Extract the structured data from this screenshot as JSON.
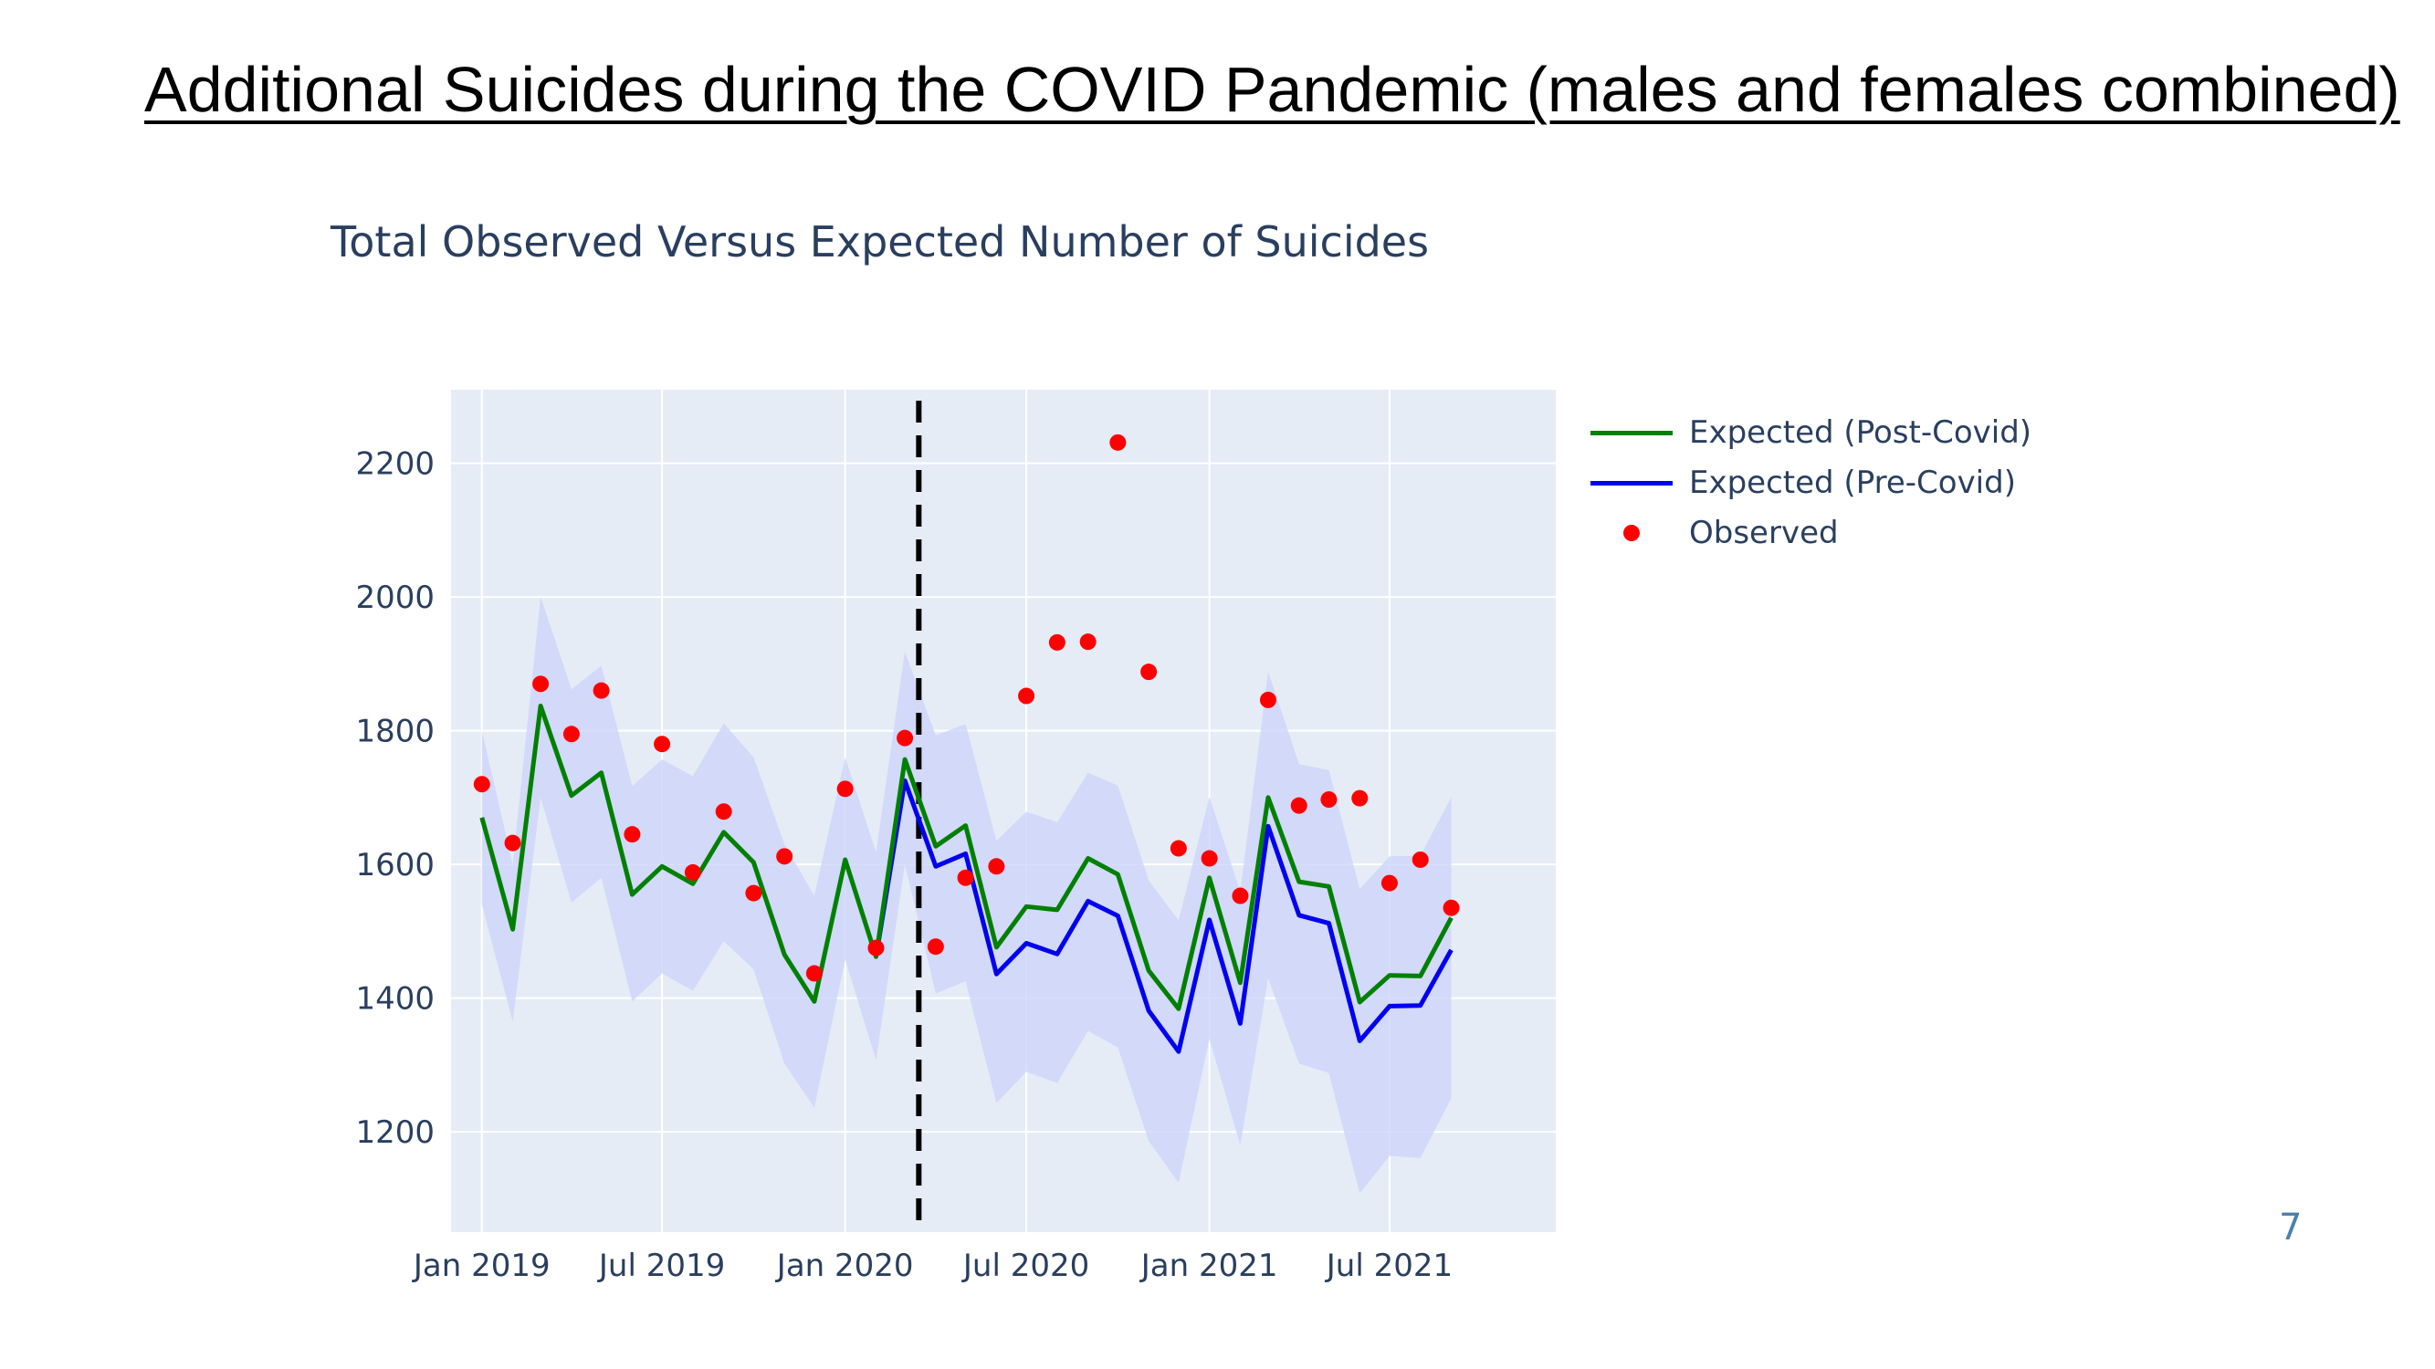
{
  "slide": {
    "title": "Additional Suicides during the COVID Pandemic (males and females combined)",
    "page_number": "7"
  },
  "colors": {
    "post_covid": "#008000",
    "pre_covid": "#0000ee",
    "observed": "#ff0000",
    "band": "#cdd5fa",
    "plot_bg": "#e5ecf6",
    "grid": "#ffffff",
    "text": "#2a3f5f"
  },
  "chart_data": {
    "type": "line",
    "title": "Total Observed Versus Expected Number of Suicides",
    "xlabel": "",
    "ylabel": "",
    "x_range": [
      "2018-12-01",
      "2021-12-15"
    ],
    "ylim": [
      1050,
      2310
    ],
    "yticks": [
      1200,
      1400,
      1600,
      1800,
      2000,
      2200
    ],
    "xticks": [
      {
        "date": "2019-01-01",
        "label": "Jan 2019"
      },
      {
        "date": "2019-07-01",
        "label": "Jul 2019"
      },
      {
        "date": "2020-01-01",
        "label": "Jan 2020"
      },
      {
        "date": "2020-07-01",
        "label": "Jul 2020"
      },
      {
        "date": "2021-01-01",
        "label": "Jan 2021"
      },
      {
        "date": "2021-07-01",
        "label": "Jul 2021"
      }
    ],
    "grid": true,
    "legend_position": "top-right",
    "vertical_marker": {
      "date": "2020-03-15",
      "style": "dashed",
      "color": "#000000"
    },
    "x": [
      "2019-01",
      "2019-02",
      "2019-03",
      "2019-04",
      "2019-05",
      "2019-06",
      "2019-07",
      "2019-08",
      "2019-09",
      "2019-10",
      "2019-11",
      "2019-12",
      "2020-01",
      "2020-02",
      "2020-03",
      "2020-04",
      "2020-05",
      "2020-06",
      "2020-07",
      "2020-08",
      "2020-09",
      "2020-10",
      "2020-11",
      "2020-12",
      "2021-01",
      "2021-02",
      "2021-03",
      "2021-04",
      "2021-05",
      "2021-06",
      "2021-07",
      "2021-08",
      "2021-09"
    ],
    "series": [
      {
        "name": "Expected (Post-Covid)",
        "mode": "line",
        "values": [
          1670,
          1503,
          1837,
          1703,
          1737,
          1555,
          1597,
          1571,
          1648,
          1603,
          1465,
          1395,
          1607,
          1462,
          1757,
          1627,
          1658,
          1476,
          1537,
          1532,
          1609,
          1585,
          1441,
          1384,
          1580,
          1423,
          1700,
          1574,
          1567,
          1394,
          1434,
          1433,
          1520
        ]
      },
      {
        "name": "Expected (Pre-Covid)",
        "mode": "line",
        "values": [
          null,
          null,
          null,
          null,
          null,
          null,
          null,
          null,
          null,
          null,
          null,
          null,
          null,
          1462,
          1725,
          1597,
          1616,
          1436,
          1482,
          1466,
          1545,
          1523,
          1381,
          1320,
          1517,
          1362,
          1657,
          1524,
          1512,
          1336,
          1388,
          1389,
          1472
        ]
      },
      {
        "name": "Observed",
        "mode": "markers",
        "values": [
          1720,
          1632,
          1870,
          1795,
          1860,
          1645,
          1780,
          1588,
          1679,
          1557,
          1612,
          1437,
          1713,
          1475,
          1789,
          1477,
          1580,
          1597,
          1852,
          1932,
          1933,
          2231,
          1888,
          1624,
          1609,
          1553,
          1846,
          1688,
          1697,
          1699,
          1572,
          1607,
          1535
        ]
      }
    ],
    "band": {
      "upper": [
        1800,
        1600,
        2000,
        1862,
        1897,
        1717,
        1757,
        1732,
        1811,
        1760,
        1630,
        1553,
        1760,
        1618,
        1918,
        1793,
        1810,
        1635,
        1679,
        1663,
        1737,
        1718,
        1576,
        1516,
        1701,
        1559,
        1888,
        1750,
        1741,
        1563,
        1612,
        1613,
        1700
      ],
      "lower": [
        1540,
        1365,
        1700,
        1543,
        1580,
        1395,
        1437,
        1411,
        1485,
        1443,
        1302,
        1236,
        1458,
        1307,
        1600,
        1407,
        1425,
        1243,
        1290,
        1273,
        1351,
        1326,
        1186,
        1124,
        1339,
        1180,
        1430,
        1302,
        1288,
        1108,
        1164,
        1161,
        1250
      ]
    }
  }
}
